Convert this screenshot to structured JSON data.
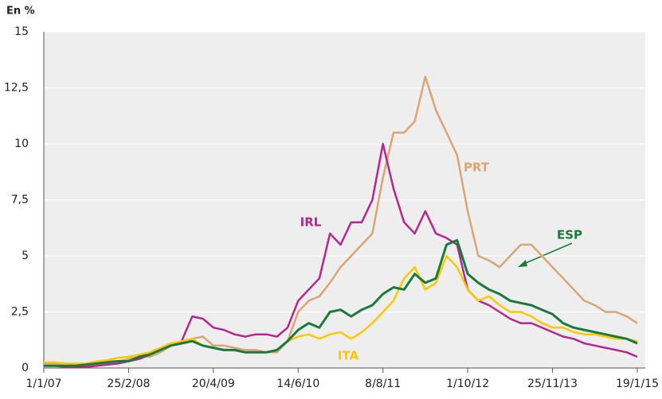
{
  "chart_data": {
    "type": "line",
    "y_axis_label": "En %",
    "categories": [
      "1/1/07",
      null,
      null,
      null,
      null,
      null,
      null,
      null,
      "25/2/08",
      null,
      null,
      null,
      null,
      null,
      null,
      null,
      "20/4/09",
      null,
      null,
      null,
      null,
      null,
      null,
      null,
      "14/6/10",
      null,
      null,
      null,
      null,
      null,
      null,
      null,
      "8/8/11",
      null,
      null,
      null,
      null,
      null,
      null,
      null,
      "1/10/12",
      null,
      null,
      null,
      null,
      null,
      null,
      null,
      "25/11/13",
      null,
      null,
      null,
      null,
      null,
      null,
      null,
      "19/1/15"
    ],
    "series": [
      {
        "name": "PRT",
        "color": "#d9a574",
        "values": [
          0.2,
          0.2,
          0.2,
          0.15,
          0.2,
          0.25,
          0.3,
          0.3,
          0.4,
          0.5,
          0.5,
          0.7,
          1.0,
          1.2,
          1.3,
          1.4,
          1.0,
          1.0,
          0.9,
          0.8,
          0.8,
          0.7,
          0.7,
          1.2,
          2.5,
          3.0,
          3.2,
          3.8,
          4.5,
          5.0,
          5.5,
          6.0,
          8.5,
          10.5,
          10.5,
          11.0,
          13.0,
          11.5,
          10.5,
          9.5,
          7.0,
          5.0,
          4.8,
          4.5,
          5.0,
          5.5,
          5.5,
          5.0,
          4.5,
          4.0,
          3.5,
          3.0,
          2.8,
          2.5,
          2.5,
          2.3,
          2.0
        ]
      },
      {
        "name": "IRL",
        "color": "#b5278e",
        "values": [
          0.1,
          0.1,
          0.05,
          0.05,
          0.05,
          0.1,
          0.15,
          0.2,
          0.3,
          0.4,
          0.6,
          0.8,
          1.0,
          1.2,
          2.3,
          2.2,
          1.8,
          1.7,
          1.5,
          1.4,
          1.5,
          1.5,
          1.4,
          1.8,
          3.0,
          3.5,
          4.0,
          6.0,
          5.5,
          6.5,
          6.5,
          7.5,
          10.0,
          8.0,
          6.5,
          6.0,
          7.0,
          6.0,
          5.8,
          5.5,
          3.5,
          3.0,
          2.8,
          2.5,
          2.2,
          2.0,
          2.0,
          1.8,
          1.6,
          1.4,
          1.3,
          1.1,
          1.0,
          0.9,
          0.8,
          0.7,
          0.5
        ]
      },
      {
        "name": "ITA",
        "color": "#fcc800",
        "values": [
          0.25,
          0.25,
          0.2,
          0.2,
          0.2,
          0.3,
          0.35,
          0.45,
          0.5,
          0.6,
          0.7,
          0.9,
          1.1,
          1.2,
          1.3,
          1.0,
          0.9,
          0.8,
          0.8,
          0.7,
          0.7,
          0.7,
          0.8,
          1.2,
          1.4,
          1.5,
          1.3,
          1.5,
          1.6,
          1.3,
          1.6,
          2.0,
          2.5,
          3.0,
          4.0,
          4.5,
          3.5,
          3.8,
          5.0,
          4.5,
          3.5,
          3.0,
          3.2,
          2.8,
          2.5,
          2.5,
          2.3,
          2.0,
          1.8,
          1.8,
          1.6,
          1.5,
          1.5,
          1.4,
          1.3,
          1.3,
          1.2
        ]
      },
      {
        "name": "ESP",
        "color": "#1a7a3a",
        "values": [
          0.1,
          0.1,
          0.1,
          0.1,
          0.15,
          0.2,
          0.25,
          0.3,
          0.3,
          0.5,
          0.6,
          0.8,
          1.0,
          1.1,
          1.2,
          1.0,
          0.9,
          0.8,
          0.8,
          0.7,
          0.7,
          0.7,
          0.8,
          1.2,
          1.7,
          2.0,
          1.8,
          2.5,
          2.6,
          2.3,
          2.6,
          2.8,
          3.3,
          3.6,
          3.5,
          4.2,
          3.8,
          4.0,
          5.5,
          5.7,
          4.2,
          3.8,
          3.5,
          3.3,
          3.0,
          2.9,
          2.8,
          2.6,
          2.4,
          2.0,
          1.8,
          1.7,
          1.6,
          1.5,
          1.4,
          1.3,
          1.1
        ]
      }
    ],
    "ylim": [
      0,
      15
    ],
    "yticks": [
      0,
      {
        "value": 2.5,
        "label": "2,5"
      },
      5,
      {
        "value": 7.5,
        "label": "7,5"
      },
      10,
      {
        "value": 12.5,
        "label": "12,5"
      },
      15
    ],
    "grid": true
  }
}
